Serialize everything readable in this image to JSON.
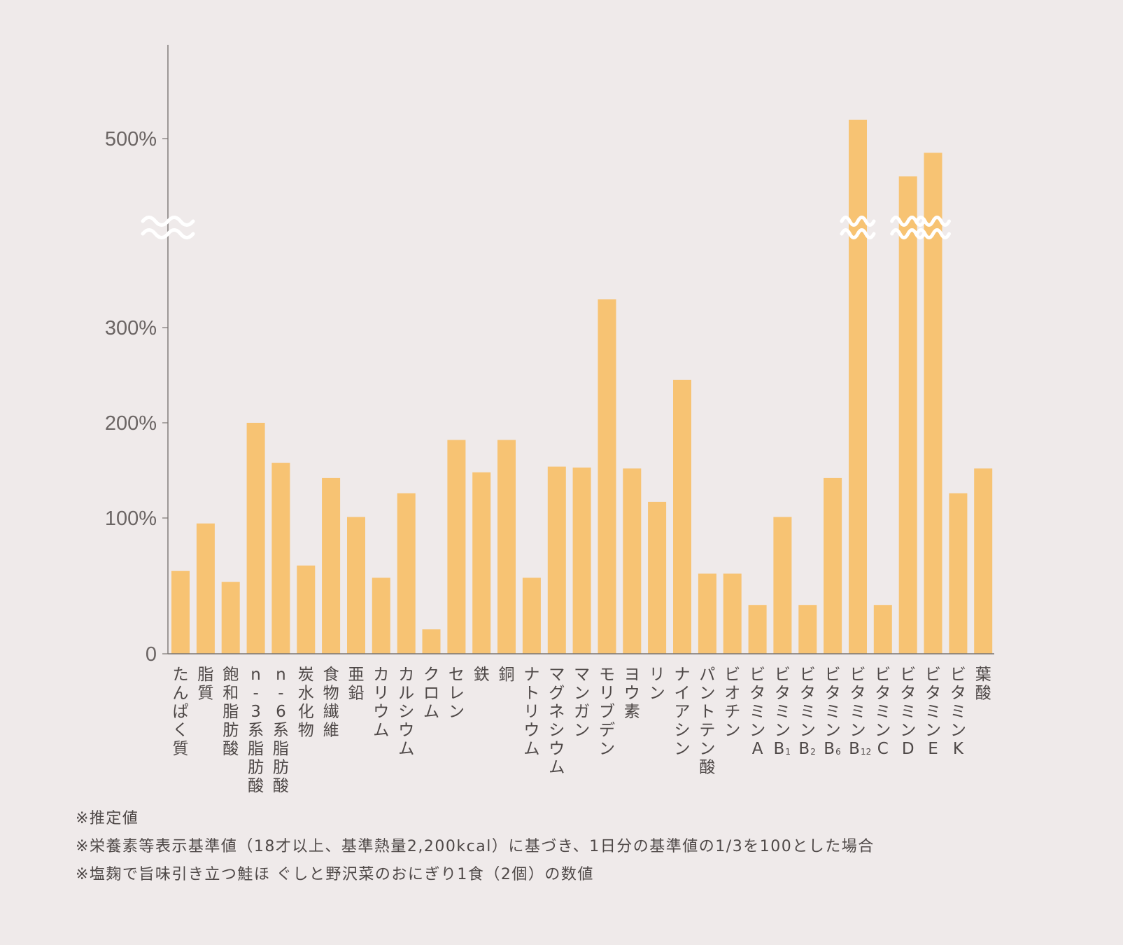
{
  "chart_data": {
    "type": "bar",
    "ylabel": "",
    "ytick_labels": [
      "0",
      "100%",
      "200%",
      "300%",
      "500%"
    ],
    "axis_break": "between 300% and 500%",
    "bar_color": "#f7c373",
    "categories": [
      "たんぱく質",
      "脂質",
      "飽和脂肪酸",
      "n-3系脂肪酸",
      "n-6系脂肪酸",
      "炭水化物",
      "食物繊維",
      "亜鉛",
      "カリウム",
      "カルシウム",
      "クロム",
      "セレン",
      "鉄",
      "銅",
      "ナトリウム",
      "マグネシウム",
      "マンガン",
      "モリブデン",
      "ヨウ素",
      "リン",
      "ナイアシン",
      "パントテン酸",
      "ビオチン",
      "ビタミンA",
      "ビタミンB1",
      "ビタミンB2",
      "ビタミンB6",
      "ビタミンB12",
      "ビタミンC",
      "ビタミンD",
      "ビタミンE",
      "ビタミンK",
      "葉酸"
    ],
    "category_labels": [
      {
        "chars": [
          "た",
          "ん",
          "ぱ",
          "く",
          "質"
        ]
      },
      {
        "chars": [
          "脂",
          "質"
        ]
      },
      {
        "chars": [
          "飽",
          "和",
          "脂",
          "肪",
          "酸"
        ]
      },
      {
        "chars": [
          "n",
          "-",
          "3",
          "系",
          "脂",
          "肪",
          "酸"
        ]
      },
      {
        "chars": [
          "n",
          "-",
          "6",
          "系",
          "脂",
          "肪",
          "酸"
        ]
      },
      {
        "chars": [
          "炭",
          "水",
          "化",
          "物"
        ]
      },
      {
        "chars": [
          "食",
          "物",
          "繊",
          "維"
        ]
      },
      {
        "chars": [
          "亜",
          "鉛"
        ]
      },
      {
        "chars": [
          "カ",
          "リ",
          "ウ",
          "ム"
        ]
      },
      {
        "chars": [
          "カ",
          "ル",
          "シ",
          "ウ",
          "ム"
        ]
      },
      {
        "chars": [
          "ク",
          "ロ",
          "ム"
        ]
      },
      {
        "chars": [
          "セ",
          "レ",
          "ン"
        ]
      },
      {
        "chars": [
          "鉄"
        ]
      },
      {
        "chars": [
          "銅"
        ]
      },
      {
        "chars": [
          "ナ",
          "ト",
          "リ",
          "ウ",
          "ム"
        ]
      },
      {
        "chars": [
          "マ",
          "グ",
          "ネ",
          "シ",
          "ウ",
          "ム"
        ]
      },
      {
        "chars": [
          "マ",
          "ン",
          "ガ",
          "ン"
        ]
      },
      {
        "chars": [
          "モ",
          "リ",
          "ブ",
          "デ",
          "ン"
        ]
      },
      {
        "chars": [
          "ヨ",
          "ウ",
          "素"
        ]
      },
      {
        "chars": [
          "リ",
          "ン"
        ]
      },
      {
        "chars": [
          "ナ",
          "イ",
          "ア",
          "シ",
          "ン"
        ]
      },
      {
        "chars": [
          "パ",
          "ン",
          "ト",
          "テ",
          "ン",
          "酸"
        ]
      },
      {
        "chars": [
          "ビ",
          "オ",
          "チ",
          "ン"
        ]
      },
      {
        "chars": [
          "ビ",
          "タ",
          "ミ",
          "ン",
          "A"
        ]
      },
      {
        "chars": [
          "ビ",
          "タ",
          "ミ",
          "ン",
          "B"
        ],
        "sub": "1"
      },
      {
        "chars": [
          "ビ",
          "タ",
          "ミ",
          "ン",
          "B"
        ],
        "sub": "2"
      },
      {
        "chars": [
          "ビ",
          "タ",
          "ミ",
          "ン",
          "B"
        ],
        "sub": "6"
      },
      {
        "chars": [
          "ビ",
          "タ",
          "ミ",
          "ン",
          "B"
        ],
        "sub": "12"
      },
      {
        "chars": [
          "ビ",
          "タ",
          "ミ",
          "ン",
          "C"
        ]
      },
      {
        "chars": [
          "ビ",
          "タ",
          "ミ",
          "ン",
          "D"
        ]
      },
      {
        "chars": [
          "ビ",
          "タ",
          "ミ",
          "ン",
          "E"
        ]
      },
      {
        "chars": [
          "ビ",
          "タ",
          "ミ",
          "ン",
          "K"
        ]
      },
      {
        "chars": [
          "葉",
          "酸"
        ]
      }
    ],
    "values": [
      61,
      96,
      53,
      200,
      158,
      65,
      142,
      101,
      56,
      126,
      18,
      182,
      148,
      182,
      56,
      154,
      153,
      330,
      152,
      117,
      245,
      59,
      59,
      36,
      101,
      36,
      142,
      520,
      36,
      460,
      485,
      126,
      152
    ],
    "broken_bars": [
      "ビタミンB12",
      "ビタミンD",
      "ビタミンE"
    ]
  },
  "notes": [
    "※推定値",
    "※栄養素等表示基準値（18才以上、基準熱量2,200kcal）に基づき、1日分の基準値の1/3を100とした場合",
    "※塩麹で旨味引き立つ鮭ほ ぐしと野沢菜のおにぎり1食（2個）の数値"
  ]
}
